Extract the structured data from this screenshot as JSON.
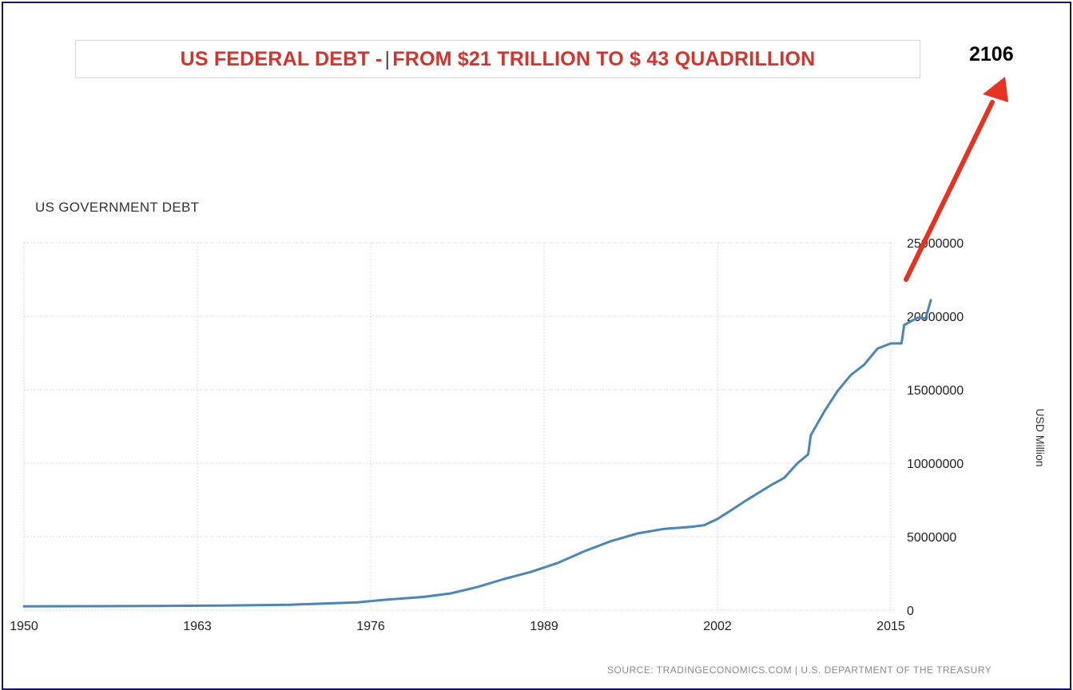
{
  "header": {
    "title_part1": "US FEDERAL DEBT -",
    "title_part2": "FROM $21 TRILLION TO $ 43 QUADRILLION"
  },
  "annotation": {
    "year_label": "2106",
    "arrow_color": "#e8321f"
  },
  "footer": {
    "source": "SOURCE: TRADINGECONOMICS.COM | U.S. DEPARTMENT OF THE TREASURY"
  },
  "colors": {
    "title": "#d8322a",
    "line": "#4a86be",
    "frame": "#16166e"
  },
  "chart_data": {
    "type": "line",
    "title": "US GOVERNMENT DEBT",
    "xlabel": "",
    "ylabel": "USD Million",
    "xlim": [
      1950,
      2018
    ],
    "ylim": [
      0,
      25000000
    ],
    "x_ticks": [
      1950,
      1963,
      1976,
      1989,
      2002,
      2015
    ],
    "x_tick_labels": [
      "1950",
      "1963",
      "1976",
      "1989",
      "2002",
      "2015"
    ],
    "y_ticks": [
      0,
      5000000,
      10000000,
      15000000,
      20000000,
      25000000
    ],
    "y_tick_labels": [
      "0",
      "5000000",
      "10000000",
      "15000000",
      "20000000",
      "25000000"
    ],
    "grid": true,
    "y_axis_position": "right",
    "series": [
      {
        "x": [
          1950,
          1955,
          1960,
          1965,
          1970,
          1975,
          1977,
          1980,
          1982,
          1984,
          1986,
          1988,
          1990,
          1992,
          1994,
          1996,
          1998,
          2000,
          2001,
          2002,
          2003,
          2004,
          2006,
          2007,
          2008,
          2008.8,
          2009,
          2010,
          2011,
          2012,
          2013,
          2014,
          2015,
          2015.8,
          2016,
          2017,
          2017.6,
          2018
        ],
        "y": [
          257000,
          274000,
          290000,
          317000,
          370000,
          533000,
          700000,
          900000,
          1140000,
          1570000,
          2120000,
          2600000,
          3200000,
          4000000,
          4690000,
          5220000,
          5530000,
          5670000,
          5780000,
          6200000,
          6780000,
          7380000,
          8500000,
          9000000,
          10000000,
          10600000,
          11900000,
          13500000,
          14900000,
          16000000,
          16700000,
          17800000,
          18150000,
          18150000,
          19400000,
          19900000,
          19850000,
          21100000
        ]
      }
    ]
  }
}
